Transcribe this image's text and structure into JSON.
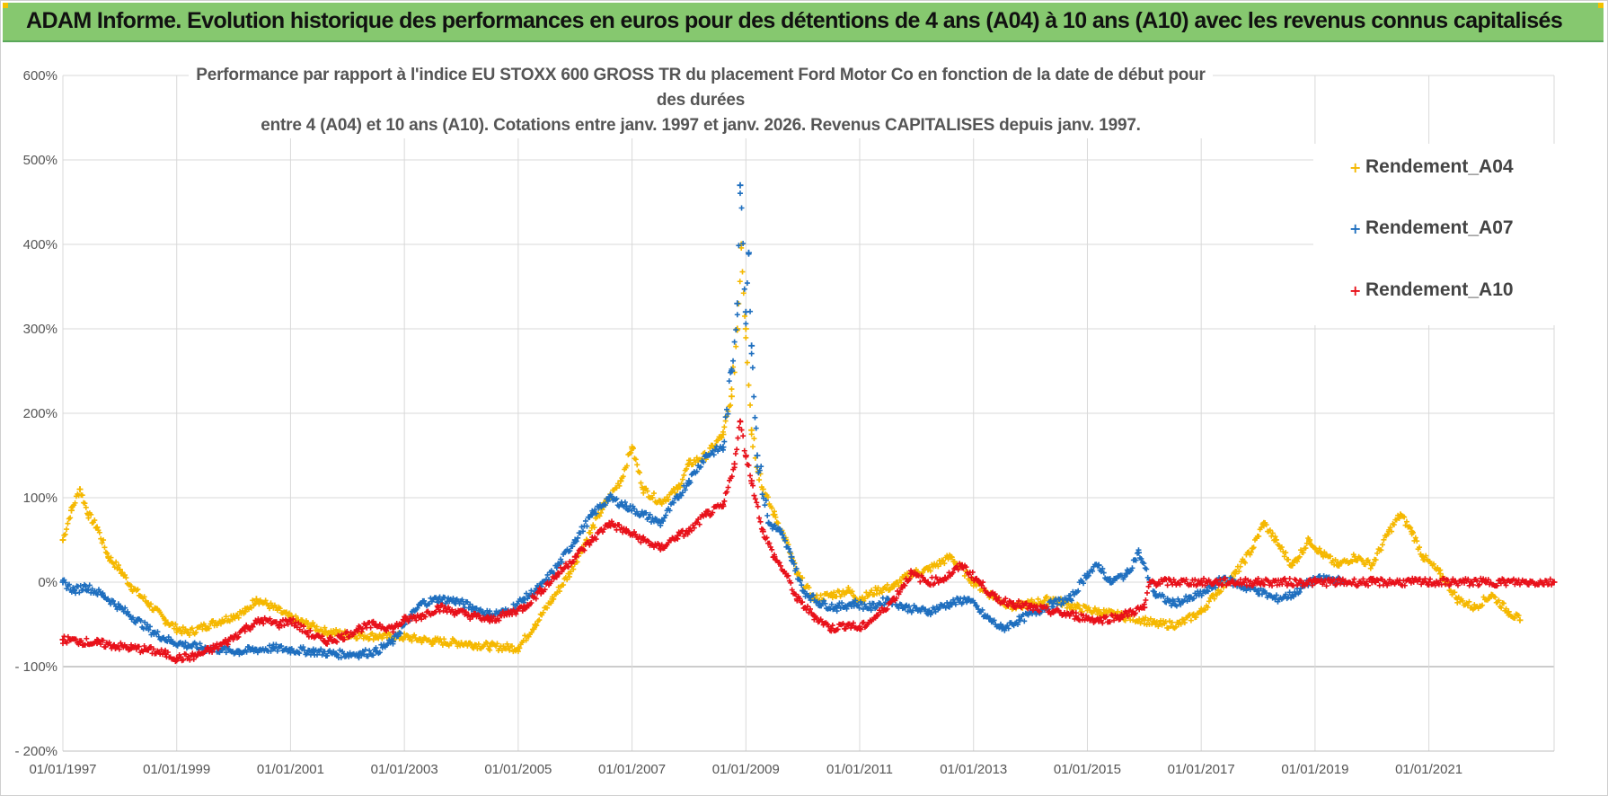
{
  "header": {
    "title": "ADAM Informe. Evolution historique des performances en euros pour des détentions de 4 ans (A04) à 10 ans (A10) avec les revenus connus capitalisés"
  },
  "colors": {
    "banner": "#86c86f",
    "a04": "#f5b800",
    "a07": "#1f6fbf",
    "a10": "#e8111a",
    "grid": "#d9d9d9"
  },
  "chart_data": {
    "type": "scatter",
    "title_lines": [
      "Performance par rapport à l'indice EU STOXX 600 GROSS TR  du placement Ford Motor Co en fonction de la date de début pour des durées",
      "entre 4 (A04) et 10 ans (A10).  Cotations entre janv. 1997 et janv. 2026. Revenus CAPITALISES  depuis janv. 1997."
    ],
    "y_tick_labels": [
      "600%",
      "500%",
      "400%",
      "300%",
      "200%",
      "100%",
      "0%",
      "- 100%",
      "- 200%"
    ],
    "y_ticks": [
      600,
      500,
      400,
      300,
      200,
      100,
      0,
      -100,
      -200
    ],
    "ylim": [
      -200,
      600
    ],
    "x_tick_labels": [
      "01/01/1997",
      "01/01/1999",
      "01/01/2001",
      "01/01/2003",
      "01/01/2005",
      "01/01/2007",
      "01/01/2009",
      "01/01/2011",
      "01/01/2013",
      "01/01/2015",
      "01/01/2017",
      "01/01/2019",
      "01/01/2021"
    ],
    "x_ticks": [
      1997,
      1999,
      2001,
      2003,
      2005,
      2007,
      2009,
      2011,
      2013,
      2015,
      2017,
      2019,
      2021
    ],
    "xlim": [
      1997,
      2023.2
    ],
    "marker": "+",
    "legend": {
      "placement": "top-right"
    },
    "series": [
      {
        "name": "Rendement_A04",
        "color": "#f5b800",
        "points": [
          [
            1997.0,
            50
          ],
          [
            1997.15,
            85
          ],
          [
            1997.3,
            110
          ],
          [
            1997.45,
            80
          ],
          [
            1997.6,
            65
          ],
          [
            1997.8,
            30
          ],
          [
            1998.0,
            15
          ],
          [
            1998.2,
            -5
          ],
          [
            1998.5,
            -25
          ],
          [
            1998.8,
            -45
          ],
          [
            1999.0,
            -55
          ],
          [
            1999.2,
            -60
          ],
          [
            1999.5,
            -52
          ],
          [
            1999.8,
            -45
          ],
          [
            2000.0,
            -40
          ],
          [
            2000.2,
            -35
          ],
          [
            2000.4,
            -20
          ],
          [
            2000.7,
            -30
          ],
          [
            2001.0,
            -42
          ],
          [
            2001.3,
            -50
          ],
          [
            2001.6,
            -58
          ],
          [
            2002.0,
            -62
          ],
          [
            2002.5,
            -64
          ],
          [
            2003.0,
            -65
          ],
          [
            2003.5,
            -70
          ],
          [
            2004.0,
            -72
          ],
          [
            2004.5,
            -76
          ],
          [
            2005.0,
            -78
          ],
          [
            2005.3,
            -50
          ],
          [
            2005.6,
            -20
          ],
          [
            2005.9,
            10
          ],
          [
            2006.2,
            50
          ],
          [
            2006.5,
            90
          ],
          [
            2006.8,
            120
          ],
          [
            2007.0,
            160
          ],
          [
            2007.2,
            110
          ],
          [
            2007.5,
            95
          ],
          [
            2007.8,
            110
          ],
          [
            2008.0,
            140
          ],
          [
            2008.3,
            150
          ],
          [
            2008.6,
            175
          ],
          [
            2008.75,
            220
          ],
          [
            2008.85,
            300
          ],
          [
            2008.92,
            400
          ],
          [
            2009.0,
            300
          ],
          [
            2009.1,
            180
          ],
          [
            2009.3,
            110
          ],
          [
            2009.5,
            80
          ],
          [
            2009.7,
            50
          ],
          [
            2009.9,
            10
          ],
          [
            2010.2,
            -20
          ],
          [
            2010.5,
            -15
          ],
          [
            2010.8,
            -10
          ],
          [
            2011.0,
            -20
          ],
          [
            2011.3,
            -10
          ],
          [
            2011.6,
            -5
          ],
          [
            2011.9,
            10
          ],
          [
            2012.2,
            15
          ],
          [
            2012.6,
            30
          ],
          [
            2013.0,
            0
          ],
          [
            2013.3,
            -15
          ],
          [
            2013.7,
            -30
          ],
          [
            2014.0,
            -25
          ],
          [
            2014.4,
            -20
          ],
          [
            2014.8,
            -30
          ],
          [
            2015.2,
            -35
          ],
          [
            2015.6,
            -40
          ],
          [
            2016.0,
            -45
          ],
          [
            2016.2,
            -50
          ],
          [
            2016.6,
            -50
          ],
          [
            2017.0,
            -35
          ],
          [
            2017.3,
            -10
          ],
          [
            2017.6,
            10
          ],
          [
            2017.9,
            40
          ],
          [
            2018.1,
            70
          ],
          [
            2018.3,
            50
          ],
          [
            2018.6,
            20
          ],
          [
            2018.9,
            50
          ],
          [
            2019.1,
            35
          ],
          [
            2019.4,
            20
          ],
          [
            2019.7,
            30
          ],
          [
            2020.0,
            20
          ],
          [
            2020.3,
            60
          ],
          [
            2020.5,
            80
          ],
          [
            2020.7,
            60
          ],
          [
            2020.9,
            30
          ],
          [
            2021.2,
            10
          ],
          [
            2021.5,
            -20
          ],
          [
            2021.8,
            -30
          ],
          [
            2022.1,
            -15
          ],
          [
            2022.4,
            -35
          ],
          [
            2022.6,
            -45
          ]
        ]
      },
      {
        "name": "Rendement_A07",
        "color": "#1f6fbf",
        "points": [
          [
            1997.0,
            0
          ],
          [
            1997.2,
            -10
          ],
          [
            1997.4,
            -5
          ],
          [
            1997.7,
            -15
          ],
          [
            1998.0,
            -30
          ],
          [
            1998.3,
            -45
          ],
          [
            1998.6,
            -60
          ],
          [
            1998.9,
            -70
          ],
          [
            1999.2,
            -75
          ],
          [
            1999.5,
            -78
          ],
          [
            1999.8,
            -80
          ],
          [
            2000.1,
            -82
          ],
          [
            2000.4,
            -80
          ],
          [
            2000.7,
            -78
          ],
          [
            2001.0,
            -80
          ],
          [
            2001.4,
            -82
          ],
          [
            2001.8,
            -85
          ],
          [
            2002.2,
            -85
          ],
          [
            2002.5,
            -82
          ],
          [
            2002.8,
            -70
          ],
          [
            2003.0,
            -50
          ],
          [
            2003.3,
            -25
          ],
          [
            2003.6,
            -20
          ],
          [
            2003.9,
            -22
          ],
          [
            2004.2,
            -30
          ],
          [
            2004.5,
            -38
          ],
          [
            2004.8,
            -35
          ],
          [
            2005.1,
            -20
          ],
          [
            2005.4,
            -5
          ],
          [
            2005.7,
            20
          ],
          [
            2006.0,
            50
          ],
          [
            2006.3,
            80
          ],
          [
            2006.6,
            100
          ],
          [
            2006.9,
            90
          ],
          [
            2007.2,
            80
          ],
          [
            2007.5,
            70
          ],
          [
            2007.8,
            100
          ],
          [
            2008.0,
            120
          ],
          [
            2008.3,
            150
          ],
          [
            2008.6,
            160
          ],
          [
            2008.75,
            250
          ],
          [
            2008.85,
            330
          ],
          [
            2008.9,
            470
          ],
          [
            2009.0,
            320
          ],
          [
            2009.05,
            390
          ],
          [
            2009.1,
            280
          ],
          [
            2009.2,
            150
          ],
          [
            2009.4,
            70
          ],
          [
            2009.6,
            60
          ],
          [
            2009.8,
            30
          ],
          [
            2010.0,
            -10
          ],
          [
            2010.3,
            -25
          ],
          [
            2010.6,
            -30
          ],
          [
            2010.9,
            -25
          ],
          [
            2011.2,
            -30
          ],
          [
            2011.5,
            -20
          ],
          [
            2011.8,
            -30
          ],
          [
            2012.2,
            -35
          ],
          [
            2012.6,
            -25
          ],
          [
            2012.9,
            -20
          ],
          [
            2013.2,
            -40
          ],
          [
            2013.5,
            -55
          ],
          [
            2013.8,
            -45
          ],
          [
            2014.1,
            -35
          ],
          [
            2014.4,
            -25
          ],
          [
            2014.7,
            -20
          ],
          [
            2015.0,
            10
          ],
          [
            2015.2,
            20
          ],
          [
            2015.4,
            0
          ],
          [
            2015.7,
            10
          ],
          [
            2015.9,
            35
          ],
          [
            2016.2,
            -15
          ],
          [
            2016.5,
            -25
          ],
          [
            2016.8,
            -20
          ],
          [
            2017.1,
            -10
          ],
          [
            2017.4,
            5
          ],
          [
            2017.7,
            -5
          ],
          [
            2018.0,
            -10
          ],
          [
            2018.3,
            -20
          ],
          [
            2018.6,
            -15
          ],
          [
            2018.9,
            0
          ],
          [
            2019.2,
            5
          ],
          [
            2019.5,
            0
          ]
        ]
      },
      {
        "name": "Rendement_A10",
        "color": "#e8111a",
        "points": [
          [
            1997.0,
            -68
          ],
          [
            1997.3,
            -70
          ],
          [
            1997.6,
            -72
          ],
          [
            1997.9,
            -75
          ],
          [
            1998.2,
            -78
          ],
          [
            1998.5,
            -80
          ],
          [
            1998.8,
            -85
          ],
          [
            1999.0,
            -90
          ],
          [
            1999.3,
            -88
          ],
          [
            1999.6,
            -80
          ],
          [
            1999.9,
            -70
          ],
          [
            2000.2,
            -55
          ],
          [
            2000.5,
            -45
          ],
          [
            2000.8,
            -50
          ],
          [
            2001.0,
            -45
          ],
          [
            2001.3,
            -60
          ],
          [
            2001.6,
            -70
          ],
          [
            2001.9,
            -65
          ],
          [
            2002.2,
            -55
          ],
          [
            2002.5,
            -50
          ],
          [
            2002.8,
            -55
          ],
          [
            2003.0,
            -45
          ],
          [
            2003.3,
            -40
          ],
          [
            2003.6,
            -30
          ],
          [
            2003.9,
            -35
          ],
          [
            2004.2,
            -40
          ],
          [
            2004.5,
            -45
          ],
          [
            2004.8,
            -38
          ],
          [
            2005.1,
            -30
          ],
          [
            2005.4,
            -10
          ],
          [
            2005.7,
            10
          ],
          [
            2006.0,
            30
          ],
          [
            2006.3,
            50
          ],
          [
            2006.6,
            70
          ],
          [
            2006.9,
            60
          ],
          [
            2007.2,
            50
          ],
          [
            2007.5,
            40
          ],
          [
            2007.8,
            55
          ],
          [
            2008.0,
            60
          ],
          [
            2008.3,
            80
          ],
          [
            2008.6,
            90
          ],
          [
            2008.8,
            140
          ],
          [
            2008.9,
            190
          ],
          [
            2009.0,
            150
          ],
          [
            2009.1,
            120
          ],
          [
            2009.3,
            60
          ],
          [
            2009.5,
            30
          ],
          [
            2009.7,
            10
          ],
          [
            2009.9,
            -20
          ],
          [
            2010.2,
            -40
          ],
          [
            2010.5,
            -55
          ],
          [
            2010.8,
            -50
          ],
          [
            2011.0,
            -55
          ],
          [
            2011.3,
            -40
          ],
          [
            2011.6,
            -20
          ],
          [
            2011.9,
            10
          ],
          [
            2012.2,
            0
          ],
          [
            2012.5,
            5
          ],
          [
            2012.8,
            20
          ],
          [
            2013.1,
            0
          ],
          [
            2013.4,
            -20
          ],
          [
            2013.7,
            -25
          ],
          [
            2014.0,
            -30
          ],
          [
            2014.4,
            -35
          ],
          [
            2014.8,
            -40
          ],
          [
            2015.2,
            -45
          ],
          [
            2015.6,
            -40
          ],
          [
            2016.0,
            -30
          ],
          [
            2016.1,
            0
          ],
          [
            2017.0,
            0
          ],
          [
            2018.0,
            0
          ],
          [
            2019.0,
            0
          ],
          [
            2020.0,
            0
          ],
          [
            2021.0,
            0
          ],
          [
            2022.0,
            0
          ],
          [
            2023.2,
            0
          ]
        ]
      }
    ]
  }
}
